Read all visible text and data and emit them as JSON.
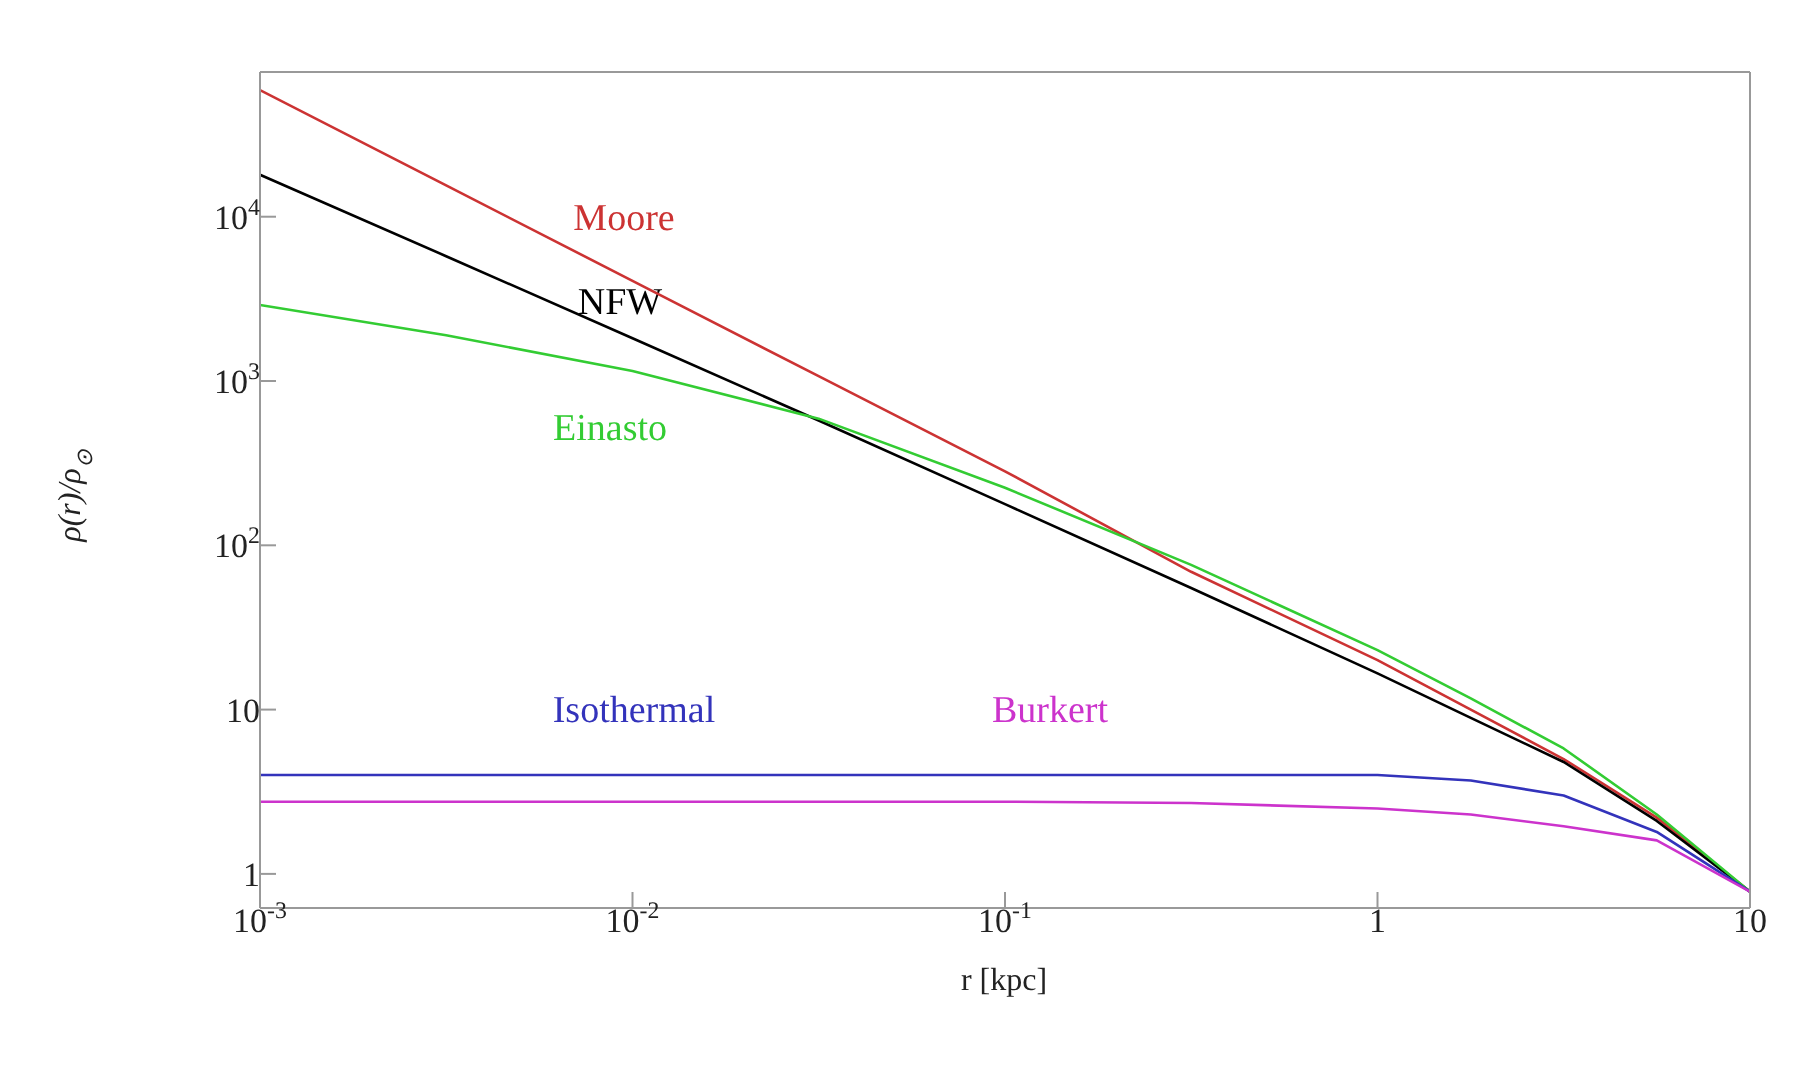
{
  "chart_data": {
    "type": "line",
    "xlabel": "r [kpc]",
    "ylabel": "ρ(r)/ρ$_{⊙}$",
    "log": "xy",
    "x": [
      0.001,
      0.00316,
      0.01,
      0.0316,
      0.1,
      0.316,
      1,
      1.78,
      3.16,
      5.62,
      10
    ],
    "xlim": [
      0.001,
      10
    ],
    "xticks": [
      {
        "value": 0.001,
        "label": "10$^{-3}$"
      },
      {
        "value": 0.01,
        "label": "10$^{-2}$"
      },
      {
        "value": 0.1,
        "label": "10$^{-1}$"
      },
      1,
      10
    ],
    "ylim": [
      0.62,
      76000
    ],
    "yticks": [
      1,
      10,
      {
        "value": 100,
        "label": "10$^{2}$"
      },
      {
        "value": 1000,
        "label": "10$^{3}$"
      },
      {
        "value": 10000,
        "label": "10$^{4}$"
      }
    ],
    "series": [
      {
        "name": "Moore",
        "color": "#cc3333",
        "values": [
          59000,
          15500,
          4070,
          1070,
          282,
          69,
          20,
          10,
          5.0,
          2.2,
          0.78
        ]
      },
      {
        "name": "NFW",
        "color": "#000000",
        "values": [
          18000,
          5750,
          1820,
          575,
          178,
          55,
          16.6,
          8.9,
          4.8,
          2.1,
          0.78
        ]
      },
      {
        "name": "Einasto",
        "color": "#33cc33",
        "values": [
          2900,
          1900,
          1150,
          590,
          224,
          76,
          23,
          11.7,
          5.8,
          2.3,
          0.78
        ]
      },
      {
        "name": "Isothermal",
        "color": "#3333bb",
        "values": [
          4.0,
          4.0,
          4.0,
          4.0,
          4.0,
          4.0,
          4.0,
          3.7,
          3.0,
          1.8,
          0.78
        ]
      },
      {
        "name": "Burkert",
        "color": "#cc33cc",
        "values": [
          2.75,
          2.75,
          2.75,
          2.75,
          2.75,
          2.7,
          2.5,
          2.3,
          1.95,
          1.6,
          0.78
        ]
      }
    ]
  }
}
